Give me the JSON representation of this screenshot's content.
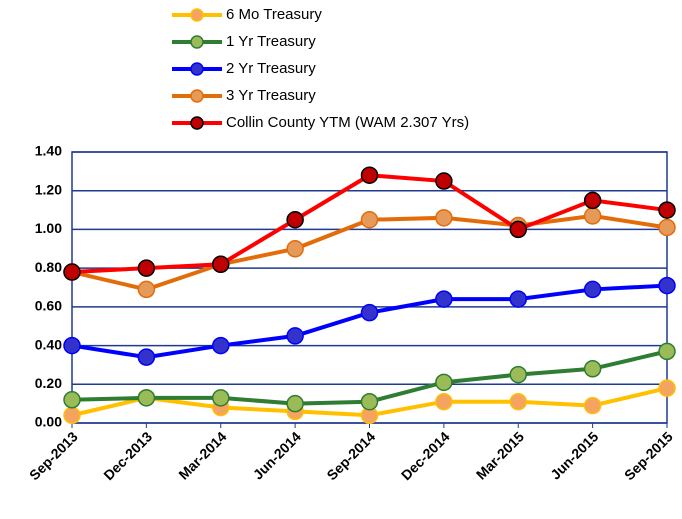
{
  "chart_data": {
    "type": "line",
    "categories": [
      "Sep-2013",
      "Dec-2013",
      "Mar-2014",
      "Jun-2014",
      "Sep-2014",
      "Dec-2014",
      "Mar-2015",
      "Jun-2015",
      "Sep-2015"
    ],
    "series": [
      {
        "name": "6 Mo Treasury",
        "color": "#FFC000",
        "marker_color": "#F4A460",
        "values": [
          0.04,
          0.13,
          0.08,
          0.06,
          0.04,
          0.11,
          0.11,
          0.09,
          0.18
        ]
      },
      {
        "name": "1 Yr Treasury",
        "color": "#2E7D32",
        "marker_color": "#9BBB59",
        "values": [
          0.12,
          0.13,
          0.13,
          0.1,
          0.11,
          0.21,
          0.25,
          0.28,
          0.37
        ]
      },
      {
        "name": "2 Yr Treasury",
        "color": "#0000FF",
        "marker_color": "#3333CC",
        "values": [
          0.4,
          0.34,
          0.4,
          0.45,
          0.57,
          0.64,
          0.64,
          0.69,
          0.71
        ]
      },
      {
        "name": "3 Yr Treasury",
        "color": "#E36C09",
        "marker_color": "#E59A5A",
        "values": [
          0.78,
          0.69,
          0.82,
          0.9,
          1.05,
          1.06,
          1.02,
          1.07,
          1.01
        ]
      },
      {
        "name": "Collin County YTM (WAM 2.307 Yrs)",
        "color": "#FF0000",
        "marker_color": "#C00000",
        "values": [
          0.78,
          0.8,
          0.82,
          1.05,
          1.28,
          1.25,
          1.0,
          1.15,
          1.1
        ]
      }
    ],
    "ylim": [
      0,
      1.4
    ],
    "yticks": [
      {
        "value": 0,
        "label": "0.00"
      },
      {
        "value": 0.2,
        "label": "0.20"
      },
      {
        "value": 0.4,
        "label": "0.40"
      },
      {
        "value": 0.6,
        "label": "0.60"
      },
      {
        "value": 0.8,
        "label": "0.80"
      },
      {
        "value": 1.0,
        "label": "1.00"
      },
      {
        "value": 1.2,
        "label": "1.20"
      },
      {
        "value": 1.4,
        "label": "1.40"
      }
    ],
    "grid": true
  }
}
